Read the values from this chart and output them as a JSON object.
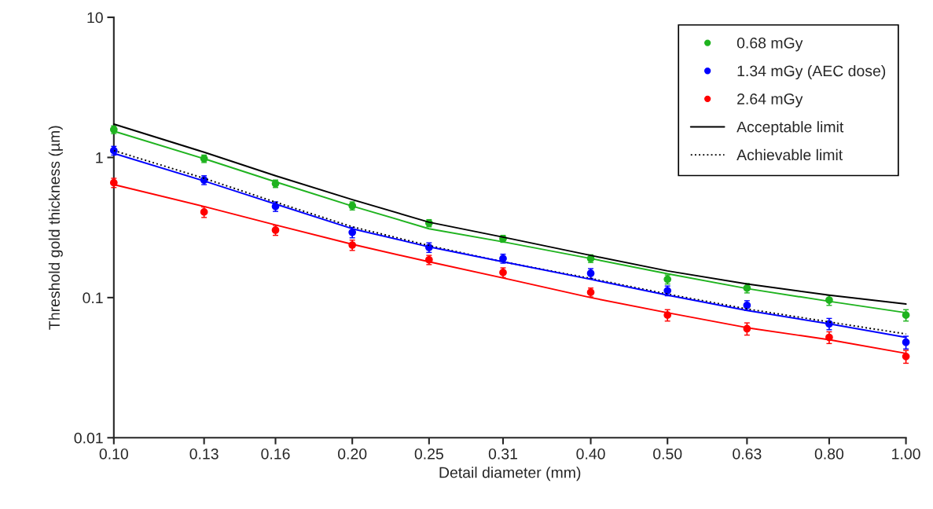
{
  "chart_data": {
    "type": "scatter",
    "xlabel": "Detail diameter (mm)",
    "ylabel": "Threshold gold thickness (µm)",
    "log": "xy",
    "legend": "top right",
    "xlim": [
      0.1,
      1.0
    ],
    "ylim": [
      0.01,
      10
    ],
    "xticks": [
      {
        "value": 0.1,
        "label": "0.10"
      },
      0.13,
      0.16,
      {
        "value": 0.2,
        "label": "0.20"
      },
      0.25,
      0.31,
      {
        "value": 0.4,
        "label": "0.40"
      },
      {
        "value": 0.5,
        "label": "0.50"
      },
      0.63,
      {
        "value": 0.8,
        "label": "0.80"
      },
      {
        "value": 1.0,
        "label": "1.00"
      }
    ],
    "yticks": [
      0.01,
      0.1,
      1,
      10
    ],
    "series": [
      {
        "name": "0.68 mGy",
        "color": "#1fb31f",
        "marker": "circle",
        "x": [
          0.1,
          0.13,
          0.16,
          0.2,
          0.25,
          0.31,
          0.4,
          0.5,
          0.63,
          0.8,
          1.0
        ],
        "values": [
          1.58,
          0.98,
          0.65,
          0.452,
          0.34,
          0.263,
          0.19,
          0.135,
          0.117,
          0.096,
          0.075
        ],
        "errors": [
          0.1,
          0.06,
          0.04,
          0.03,
          0.02,
          0.015,
          0.012,
          0.01,
          0.009,
          0.008,
          0.007
        ]
      },
      {
        "name": "1.34 mGy (AEC dose)",
        "color": "#0000ff",
        "marker": "circle",
        "x": [
          0.1,
          0.13,
          0.16,
          0.2,
          0.25,
          0.31,
          0.4,
          0.5,
          0.63,
          0.8,
          1.0
        ],
        "values": [
          1.12,
          0.69,
          0.447,
          0.292,
          0.228,
          0.19,
          0.149,
          0.112,
          0.088,
          0.065,
          0.048
        ],
        "errors": [
          0.08,
          0.05,
          0.035,
          0.025,
          0.018,
          0.014,
          0.012,
          0.009,
          0.007,
          0.006,
          0.005
        ]
      },
      {
        "name": "2.64 mGy",
        "color": "#ff0000",
        "marker": "circle",
        "x": [
          0.1,
          0.13,
          0.16,
          0.2,
          0.25,
          0.31,
          0.4,
          0.5,
          0.63,
          0.8,
          1.0
        ],
        "values": [
          0.66,
          0.408,
          0.303,
          0.237,
          0.186,
          0.151,
          0.109,
          0.075,
          0.06,
          0.052,
          0.038
        ],
        "errors": [
          0.05,
          0.035,
          0.025,
          0.02,
          0.014,
          0.012,
          0.008,
          0.007,
          0.006,
          0.005,
          0.004
        ]
      },
      {
        "type": "line",
        "name": "Acceptable limit",
        "color": "#000000",
        "line_style": "solid",
        "x": [
          0.1,
          0.13,
          0.16,
          0.2,
          0.25,
          0.31,
          0.4,
          0.5,
          0.63,
          0.8,
          1.0
        ],
        "values": [
          1.73,
          1.09,
          0.74,
          0.5,
          0.345,
          0.27,
          0.2,
          0.155,
          0.125,
          0.104,
          0.09
        ]
      },
      {
        "type": "line",
        "name": "Achievable limit",
        "color": "#000000",
        "line_style": "dotted",
        "x": [
          0.1,
          0.13,
          0.16,
          0.2,
          0.25,
          0.31,
          0.4,
          0.5,
          0.63,
          0.8,
          1.0
        ],
        "values": [
          1.12,
          0.71,
          0.48,
          0.32,
          0.235,
          0.18,
          0.137,
          0.106,
          0.083,
          0.067,
          0.055
        ]
      },
      {
        "type": "line",
        "color": "#1fb31f",
        "line_style": "solid",
        "x": [
          0.1,
          0.13,
          0.16,
          0.2,
          0.25,
          0.31,
          0.4,
          0.5,
          0.63,
          0.8,
          1.0
        ],
        "values": [
          1.54,
          0.98,
          0.67,
          0.45,
          0.31,
          0.25,
          0.19,
          0.148,
          0.116,
          0.094,
          0.078
        ]
      },
      {
        "type": "line",
        "color": "#0000ff",
        "line_style": "solid",
        "x": [
          0.1,
          0.13,
          0.16,
          0.2,
          0.25,
          0.31,
          0.4,
          0.5,
          0.63,
          0.8,
          1.0
        ],
        "values": [
          1.07,
          0.68,
          0.465,
          0.31,
          0.23,
          0.18,
          0.135,
          0.104,
          0.081,
          0.065,
          0.052
        ]
      },
      {
        "type": "line",
        "color": "#ff0000",
        "line_style": "solid",
        "x": [
          0.1,
          0.13,
          0.16,
          0.2,
          0.25,
          0.31,
          0.4,
          0.5,
          0.63,
          0.8,
          1.0
        ],
        "values": [
          0.64,
          0.447,
          0.33,
          0.24,
          0.18,
          0.138,
          0.1,
          0.078,
          0.061,
          0.05,
          0.04
        ]
      }
    ]
  }
}
